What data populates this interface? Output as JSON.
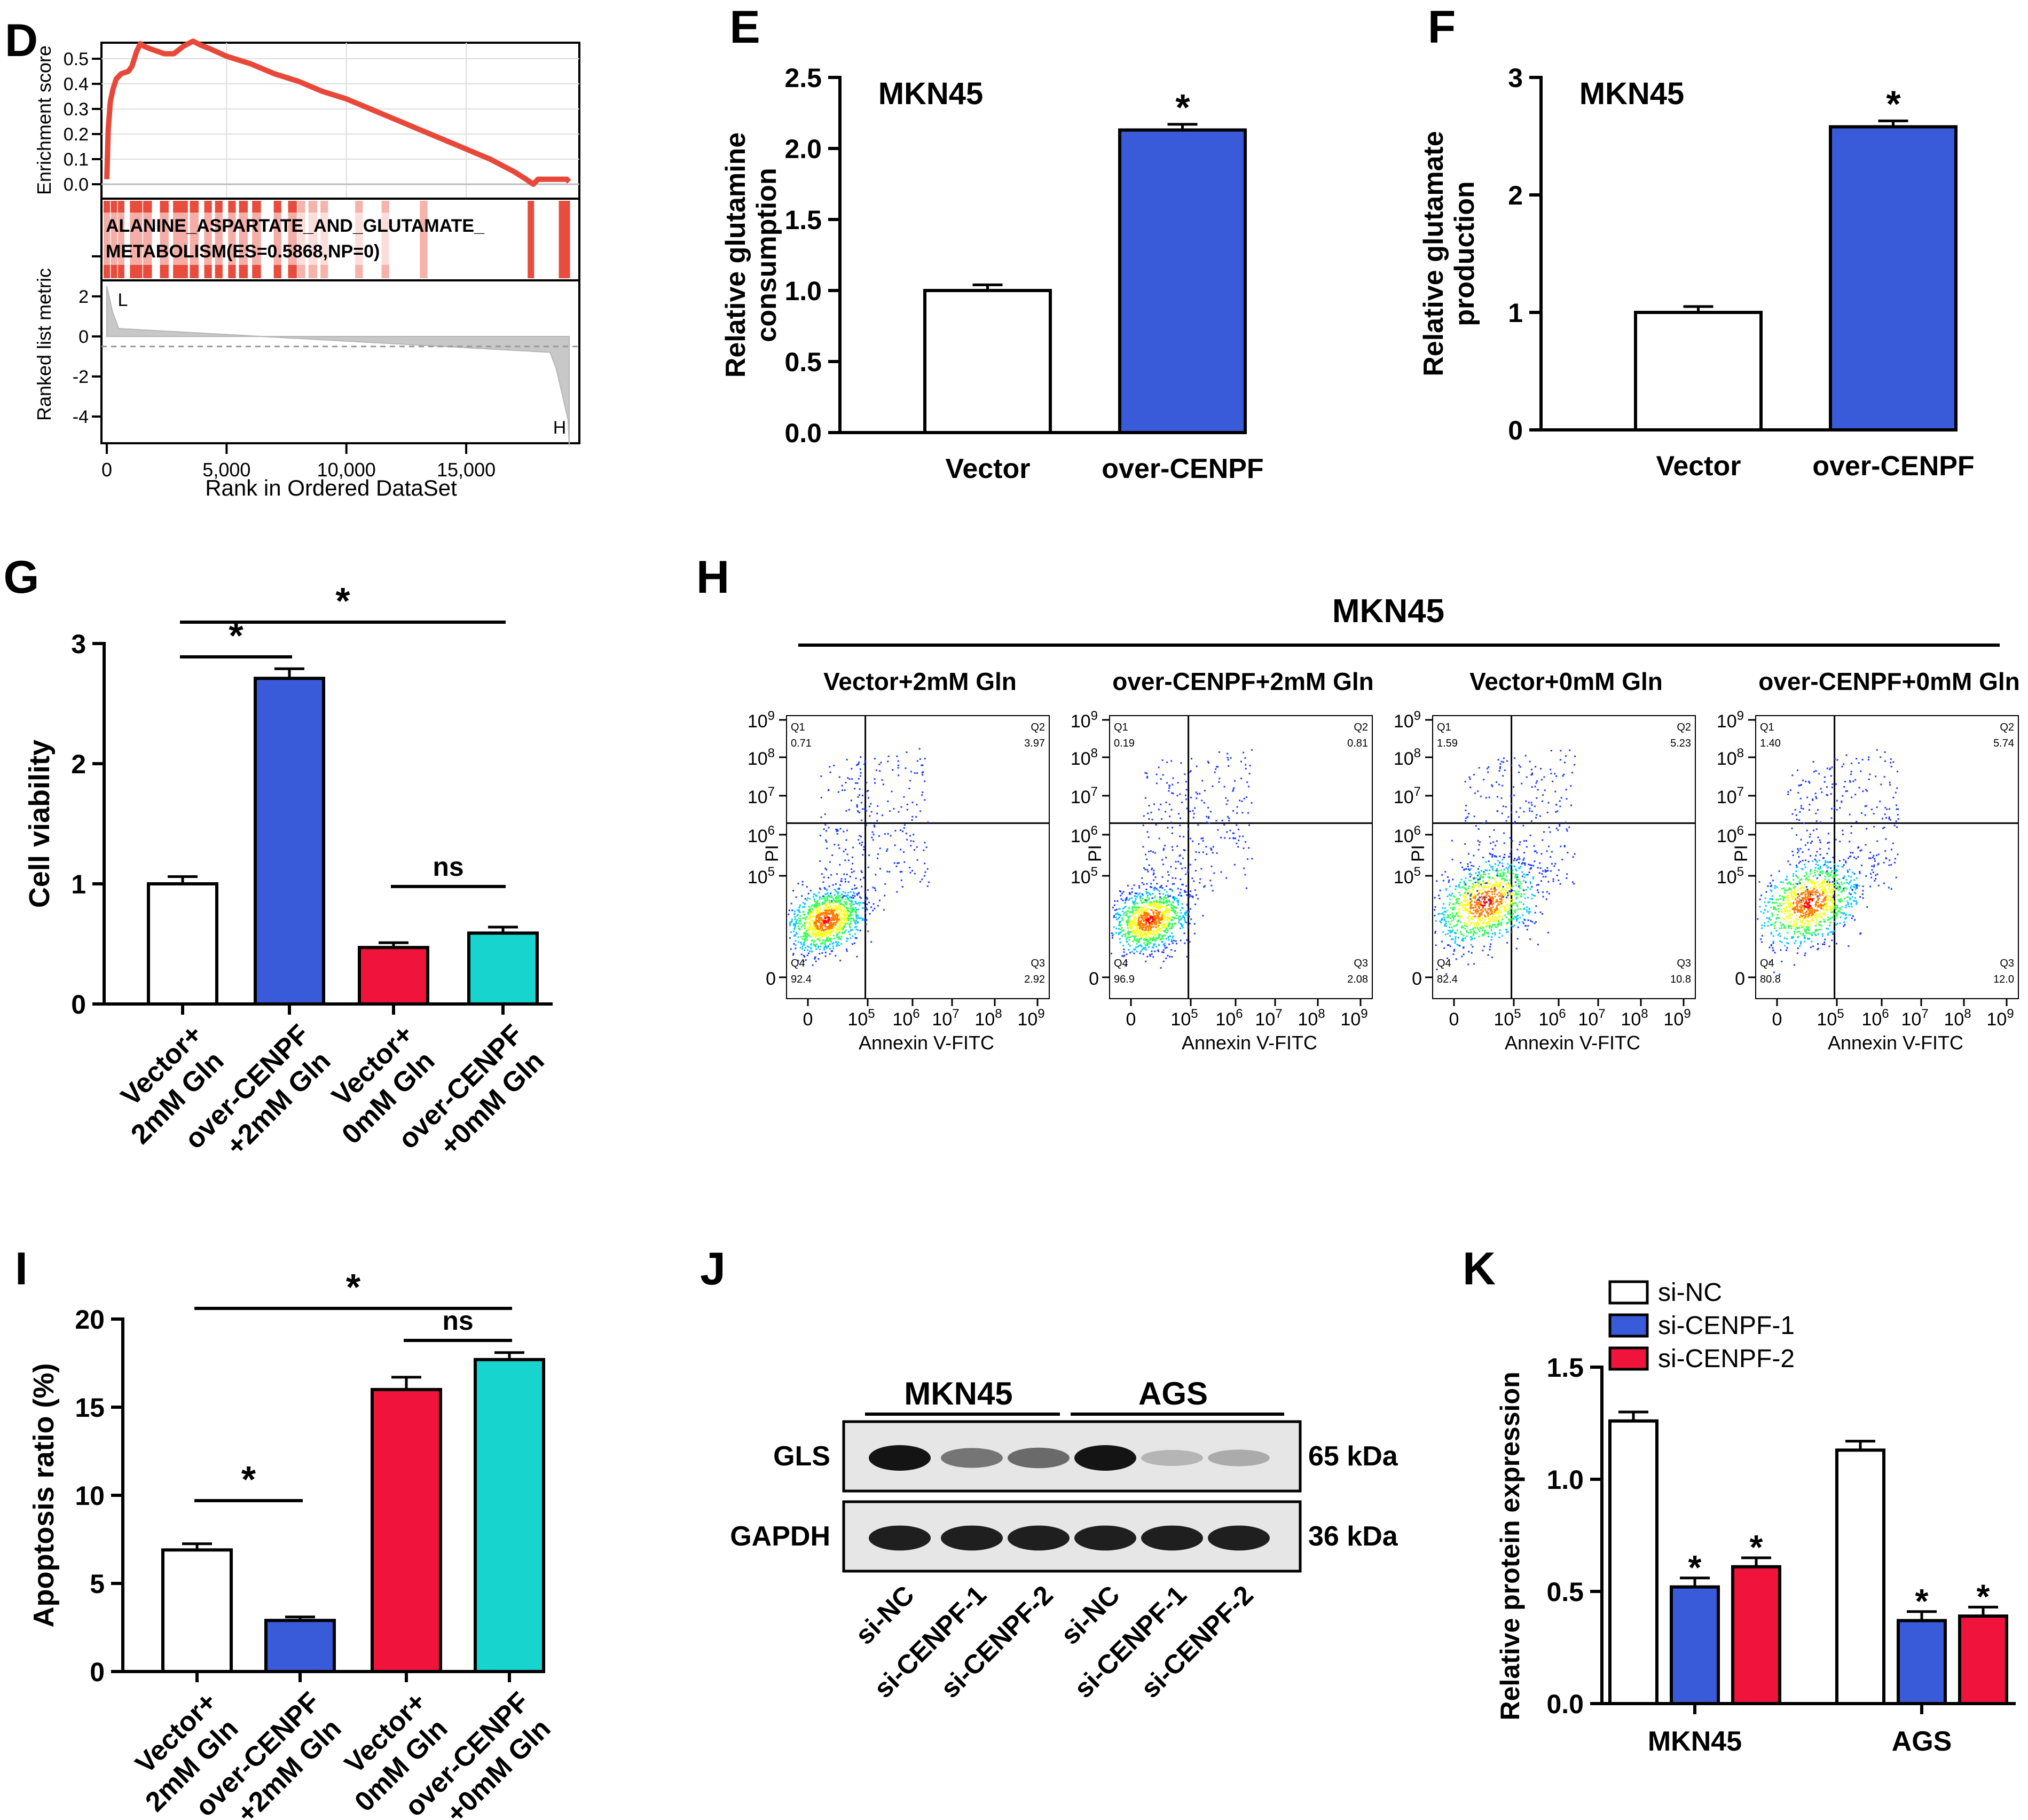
{
  "colors": {
    "white": "#ffffff",
    "blue": "#3a5bd9",
    "red": "#f0143c",
    "cyan": "#17d4cf",
    "gsea_red": "#e8483a",
    "gsea_bar": "#e84c3d",
    "gsea_pink": "#f6b3ab",
    "grey": "#c8c8c8"
  },
  "panel_letters": [
    "D",
    "E",
    "F",
    "G",
    "H",
    "I",
    "J",
    "K"
  ],
  "chart_data": [
    {
      "panel": "D",
      "type": "line",
      "ylabel_top": "Enrichment score",
      "ylabel_bottom": "Ranked list metric",
      "xlabel": "Rank in Ordered DataSet",
      "gene_set_label_1": "ALANINE_ASPARTATE_AND_GLUTAMATE_",
      "gene_set_label_2": "METABOLISM(ES=0.5868,NP=0)",
      "es_ticks": [
        "0.5",
        "0.4",
        "0.3",
        "0.2",
        "0.1",
        "0.0"
      ],
      "metric_ticks": [
        "2",
        "0",
        "-2",
        "-4"
      ],
      "x_ticks": [
        "0",
        "5,000",
        "10,000",
        "15,000"
      ],
      "x_tick_values": [
        0,
        5000,
        10000,
        15000
      ],
      "xlim": [
        0,
        19500
      ],
      "es_ylim": [
        0,
        0.6
      ],
      "es_x": [
        0,
        60,
        150,
        260,
        400,
        600,
        900,
        1050,
        1250,
        1400,
        1550,
        1800,
        2100,
        2400,
        2800,
        3200,
        3600,
        3900,
        4300,
        5000,
        6000,
        7000,
        8000,
        9000,
        10000,
        11000,
        12000,
        13000,
        14000,
        15000,
        16000,
        17000,
        17500,
        17800,
        18000,
        18300,
        18700,
        19000,
        19200,
        19300
      ],
      "es_y": [
        0.02,
        0.22,
        0.33,
        0.38,
        0.42,
        0.44,
        0.45,
        0.47,
        0.53,
        0.56,
        0.55,
        0.54,
        0.53,
        0.52,
        0.52,
        0.55,
        0.57,
        0.555,
        0.54,
        0.51,
        0.48,
        0.44,
        0.41,
        0.37,
        0.34,
        0.3,
        0.26,
        0.22,
        0.18,
        0.14,
        0.1,
        0.05,
        0.02,
        0.0,
        0.02,
        0.02,
        0.02,
        0.02,
        0.02,
        0.01
      ],
      "hits": [
        0,
        300,
        600,
        1100,
        1150,
        1300,
        1350,
        1650,
        1700,
        1750,
        2350,
        2400,
        2450,
        2900,
        2950,
        3200,
        3250,
        3600,
        3700,
        4200,
        4250,
        4650,
        4700,
        5200,
        5250,
        5650,
        5700,
        5750,
        6200,
        6250,
        6300,
        7100,
        7150,
        7700,
        7750,
        7800,
        8100,
        8150,
        8550,
        8600,
        8650,
        9050,
        9100,
        10500,
        10550,
        11600,
        11650,
        13200,
        13250,
        17700,
        19000,
        19100,
        19200
      ],
      "metric_start": 2.5,
      "metric_end": -4.5,
      "zero_cross_rank": 9800,
      "label_low": "L",
      "label_high": "H"
    },
    {
      "panel": "E",
      "type": "bar",
      "title": "MKN45",
      "ylabel_1": "Relative glutamine",
      "ylabel_2": "consumption",
      "categories": [
        "Vector",
        "over-CENPF"
      ],
      "values": [
        1.0,
        2.13
      ],
      "errors": [
        0.04,
        0.04
      ],
      "colors": [
        "#ffffff",
        "#3a5bd9"
      ],
      "ylim": [
        0,
        2.5
      ],
      "yticks": [
        0,
        0.5,
        1.0,
        1.5,
        2.0,
        2.5
      ],
      "yticks_text": [
        "0.0",
        "0.5",
        "1.0",
        "1.5",
        "2.0",
        "2.5"
      ],
      "star": "*"
    },
    {
      "panel": "F",
      "type": "bar",
      "title": "MKN45",
      "ylabel_1": "Relative glutamate",
      "ylabel_2": "production",
      "categories": [
        "Vector",
        "over-CENPF"
      ],
      "values": [
        1.0,
        2.58
      ],
      "errors": [
        0.05,
        0.05
      ],
      "colors": [
        "#ffffff",
        "#3a5bd9"
      ],
      "ylim": [
        0,
        3
      ],
      "yticks": [
        0,
        1,
        2,
        3
      ],
      "yticks_text": [
        "0",
        "1",
        "2",
        "3"
      ],
      "star": "*"
    },
    {
      "panel": "G",
      "type": "bar",
      "ylabel": "Cell viability",
      "categories_1": [
        "Vector+",
        "over-CENPF",
        "Vector+",
        "over-CENPF"
      ],
      "categories_2": [
        "2mM Gln",
        "+2mM Gln",
        "0mM Gln",
        "+0mM Gln"
      ],
      "values": [
        1.0,
        2.71,
        0.47,
        0.59
      ],
      "errors": [
        0.06,
        0.08,
        0.04,
        0.05
      ],
      "colors": [
        "#ffffff",
        "#3a5bd9",
        "#f0143c",
        "#17d4cf"
      ],
      "ylim": [
        0,
        3
      ],
      "yticks": [
        0,
        1,
        2,
        3
      ],
      "yticks_text": [
        "0",
        "1",
        "2",
        "3"
      ],
      "sig_inner": "*",
      "sig_outer": "*",
      "sig_ns": "ns"
    },
    {
      "panel": "H",
      "type": "scatter",
      "title": "MKN45",
      "xlabel": "Annexin V-FITC",
      "ylabel": "PI",
      "tick_labels": [
        "0",
        "5",
        "6",
        "7",
        "8",
        "9"
      ],
      "plots": [
        {
          "title": "Vector+2mM Gln",
          "q1": "0.71",
          "q2": "3.97",
          "q3": "2.92",
          "q4": "92.4",
          "spread": "low"
        },
        {
          "title": "over-CENPF+2mM Gln",
          "q1": "0.19",
          "q2": "0.81",
          "q3": "2.08",
          "q4": "96.9",
          "spread": "low"
        },
        {
          "title": "Vector+0mM Gln",
          "q1": "1.59",
          "q2": "5.23",
          "q3": "10.8",
          "q4": "82.4",
          "spread": "high"
        },
        {
          "title": "over-CENPF+0mM Gln",
          "q1": "1.40",
          "q2": "5.74",
          "q3": "12.0",
          "q4": "80.8",
          "spread": "high"
        }
      ],
      "quadrant_names": [
        "Q1",
        "Q2",
        "Q3",
        "Q4"
      ]
    },
    {
      "panel": "I",
      "type": "bar",
      "ylabel": "Apoptosis ratio (%)",
      "categories_1": [
        "Vector+",
        "over-CENPF",
        "Vector+",
        "over-CENPF"
      ],
      "categories_2": [
        "2mM Gln",
        "+2mM Gln",
        "0mM Gln",
        "+0mM Gln"
      ],
      "values": [
        6.9,
        2.9,
        16.0,
        17.7
      ],
      "errors": [
        0.35,
        0.2,
        0.7,
        0.4
      ],
      "colors": [
        "#ffffff",
        "#3a5bd9",
        "#f0143c",
        "#17d4cf"
      ],
      "ylim": [
        0,
        20
      ],
      "yticks": [
        0,
        5,
        10,
        15,
        20
      ],
      "yticks_text": [
        "0",
        "5",
        "10",
        "15",
        "20"
      ],
      "sig_inner": "*",
      "sig_outer": "*",
      "sig_ns": "ns"
    },
    {
      "panel": "J",
      "type": "table",
      "group_1": "MKN45",
      "group_2": "AGS",
      "rows": [
        {
          "name": "GLS",
          "size": "65 kDa",
          "intensity": [
            1.0,
            0.55,
            0.6,
            1.0,
            0.25,
            0.3
          ]
        },
        {
          "name": "GAPDH",
          "size": "36 kDa",
          "intensity": [
            0.95,
            0.95,
            0.95,
            0.95,
            0.95,
            0.95
          ]
        }
      ],
      "lanes": [
        "si-NC",
        "si-CENPF-1",
        "si-CENPF-2",
        "si-NC",
        "si-CENPF-1",
        "si-CENPF-2"
      ]
    },
    {
      "panel": "K",
      "type": "bar",
      "ylabel": "Relative protein expression",
      "categories": [
        "MKN45",
        "AGS"
      ],
      "series": [
        {
          "name": "si-NC",
          "values": [
            1.26,
            1.13
          ],
          "errors": [
            0.04,
            0.04
          ],
          "color": "#ffffff"
        },
        {
          "name": "si-CENPF-1",
          "values": [
            0.52,
            0.37
          ],
          "errors": [
            0.04,
            0.04
          ],
          "color": "#3a5bd9"
        },
        {
          "name": "si-CENPF-2",
          "values": [
            0.61,
            0.39
          ],
          "errors": [
            0.04,
            0.04
          ],
          "color": "#f0143c"
        }
      ],
      "ylim": [
        0,
        1.5
      ],
      "yticks": [
        0,
        0.5,
        1.0,
        1.5
      ],
      "yticks_text": [
        "0.0",
        "0.5",
        "1.0",
        "1.5"
      ],
      "star": "*"
    }
  ]
}
